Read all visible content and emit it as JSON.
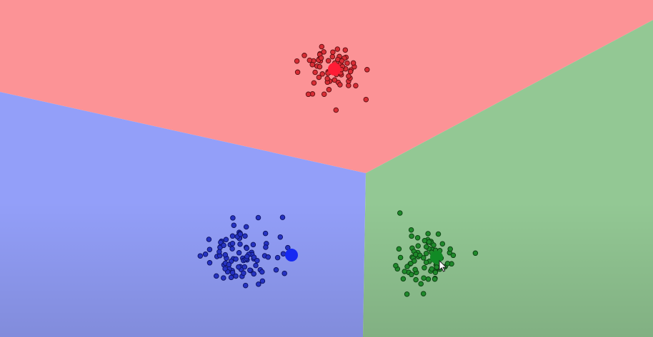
{
  "regions": [
    {
      "name": "red-region",
      "color": "#fc9396"
    },
    {
      "name": "blue-region",
      "color": "#939ff9"
    },
    {
      "name": "green-region",
      "color": "#93c894"
    }
  ],
  "clusters": [
    {
      "name": "red",
      "point_color": "#d82d35",
      "point_stroke": "#5a0d10",
      "centroid_color": "#ff1c35",
      "count": 70
    },
    {
      "name": "blue",
      "point_color": "#2633c2",
      "point_stroke": "#0b1160",
      "centroid_color": "#1629f2",
      "count": 90
    },
    {
      "name": "green",
      "point_color": "#1f8a2b",
      "point_stroke": "#0b3d10",
      "centroid_color": "#118a25",
      "count": 80
    }
  ],
  "cursor": {
    "icon": "mouse-pointer-icon"
  }
}
